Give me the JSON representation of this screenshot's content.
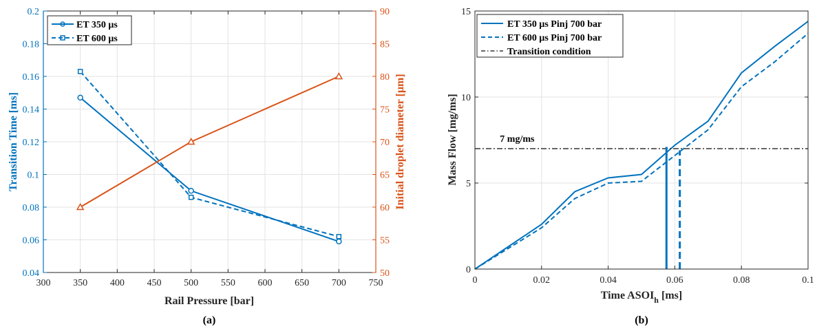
{
  "chart_data": [
    {
      "type": "line",
      "caption": "(a)",
      "xlabel": "Rail Pressure [bar]",
      "ylabel_left": "Transition Time [ms]",
      "ylabel_right": "Initial droplet diameter [μm]",
      "xlim": [
        300,
        750
      ],
      "ylim_left": [
        0.04,
        0.2
      ],
      "ylim_right": [
        50,
        90
      ],
      "xticks": [
        300,
        350,
        400,
        450,
        500,
        550,
        600,
        650,
        700,
        750
      ],
      "yticks_left": [
        0.04,
        0.06,
        0.08,
        0.1,
        0.12,
        0.14,
        0.16,
        0.18,
        0.2
      ],
      "yticks_right": [
        50,
        55,
        60,
        65,
        70,
        75,
        80,
        85,
        90
      ],
      "grid": true,
      "legend_position": "top-left",
      "series": [
        {
          "name": "ET 350 μs",
          "axis": "left",
          "style": "solid",
          "marker": "circle",
          "color": "#0072BD",
          "x": [
            350,
            500,
            700
          ],
          "y": [
            0.147,
            0.09,
            0.059
          ]
        },
        {
          "name": "ET 600 μs",
          "axis": "left",
          "style": "dashed",
          "marker": "square",
          "color": "#0072BD",
          "x": [
            350,
            500,
            700
          ],
          "y": [
            0.163,
            0.086,
            0.062
          ]
        },
        {
          "axis": "right",
          "style": "solid",
          "marker": "triangle",
          "color": "#D95319",
          "x": [
            350,
            500,
            700
          ],
          "y": [
            60,
            70,
            80
          ]
        }
      ]
    },
    {
      "type": "line",
      "caption": "(b)",
      "xlabel_main": "Time ASOI",
      "xlabel_sub": "h",
      "xlabel_unit": " [ms]",
      "ylabel": "Mass Flow [mg/ms]",
      "xlim": [
        0,
        0.1
      ],
      "ylim": [
        0,
        15
      ],
      "xticks": [
        0,
        0.02,
        0.04,
        0.06,
        0.08,
        0.1
      ],
      "yticks": [
        0,
        5,
        10,
        15
      ],
      "grid": true,
      "legend_position": "top-left",
      "annotation": "7 mg/ms",
      "series": [
        {
          "name": "ET 350 μs Pinj 700 bar",
          "style": "solid",
          "color": "#0072BD",
          "x": [
            0,
            0.01,
            0.02,
            0.03,
            0.04,
            0.05,
            0.06,
            0.07,
            0.08,
            0.09,
            0.1
          ],
          "y": [
            0,
            1.3,
            2.6,
            4.5,
            5.3,
            5.5,
            7.2,
            8.6,
            11.4,
            12.95,
            14.4
          ]
        },
        {
          "name": "ET 600 μs Pinj 700 bar",
          "style": "dashed",
          "color": "#0072BD",
          "x": [
            0,
            0.01,
            0.02,
            0.03,
            0.04,
            0.05,
            0.06,
            0.07,
            0.08,
            0.09,
            0.1
          ],
          "y": [
            0,
            1.2,
            2.4,
            4.1,
            5.0,
            5.1,
            6.6,
            8.1,
            10.6,
            12.05,
            13.7
          ]
        },
        {
          "name": "Transition condition",
          "style": "dashdot",
          "color": "#333333",
          "x": [
            0,
            0.1
          ],
          "y": [
            7,
            7
          ]
        }
      ],
      "transition_markers": [
        {
          "series": "ET 350 μs Pinj 700 bar",
          "x": 0.0575,
          "y": 7.1,
          "style": "solid"
        },
        {
          "series": "ET 600 μs Pinj 700 bar",
          "x": 0.0615,
          "y": 6.9,
          "style": "dashed"
        }
      ]
    }
  ]
}
